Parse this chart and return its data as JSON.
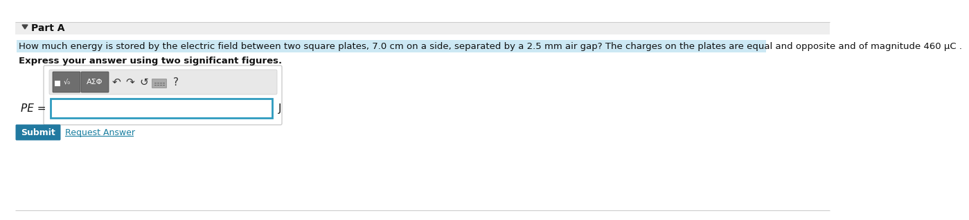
{
  "white_bg": "#ffffff",
  "part_label": "Part A",
  "question_text": "How much energy is stored by the electric field between two square plates, 7.0 cm on a side, separated by a 2.5 mm air gap? The charges on the plates are equal and opposite and of magnitude 460 μC .",
  "instruction_text": "Express your answer using two significant figures.",
  "pe_label": "PE =",
  "unit_label": "J",
  "submit_text": "Submit",
  "request_text": "Request Answer",
  "highlight_color": "#cce8f4",
  "input_border_color": "#2e9bbf",
  "submit_bg": "#2179a0",
  "submit_text_color": "#ffffff",
  "request_link_color": "#1a7fa0",
  "toolbar_btn_bg": "#6e6e6e",
  "outer_border_color": "#cccccc",
  "part_a_bg": "#eeeeee",
  "toolbar_area_bg": "#e8e8e8",
  "arrow_color": "#444444",
  "font_size_question": 9.5,
  "font_size_part": 10,
  "font_size_instruction": 9.5,
  "font_size_pe": 11,
  "font_size_submit": 9,
  "fig_width": 12.0,
  "fig_height": 2.99
}
